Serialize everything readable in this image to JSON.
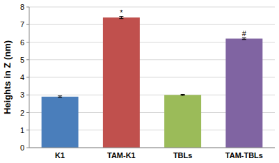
{
  "chart_data": {
    "type": "bar",
    "y_label": "Heights in Z (nm)",
    "categories": [
      "K1",
      "TAM-K1",
      "TBLs",
      "TAM-TBLs"
    ],
    "values": [
      2.9,
      7.4,
      3.0,
      6.2
    ],
    "errors": [
      0.04,
      0.06,
      0.03,
      0.05
    ],
    "annotations": [
      null,
      "*",
      null,
      "#"
    ],
    "colors": [
      "#4a7ebb",
      "#c0504d",
      "#9bbb59",
      "#8064a2"
    ],
    "ylim": [
      0,
      8
    ],
    "yticks": [
      0,
      1,
      2,
      3,
      4,
      5,
      6,
      7,
      8
    ],
    "grid": true
  }
}
